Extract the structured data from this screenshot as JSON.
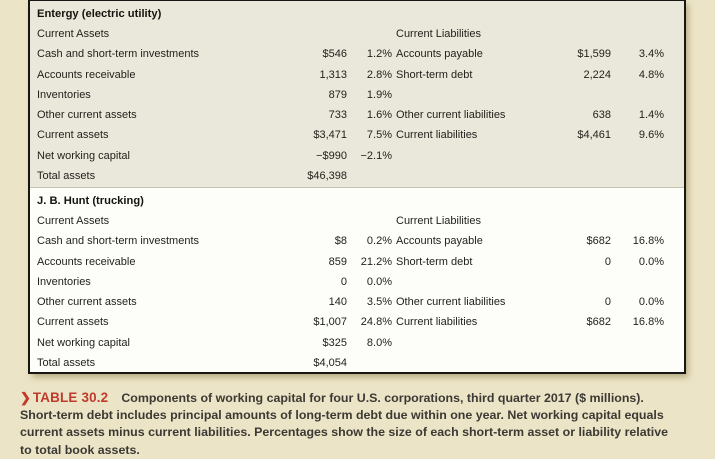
{
  "colors": {
    "page_bg": "#ece4c6",
    "entergy_bg": "#eae8da",
    "jbhunt_bg": "#fdfdfa",
    "border": "#161613",
    "accent_red": "#bf3a2b",
    "caption_text": "#3b3933"
  },
  "table": {
    "sections": [
      {
        "company": "Entergy (electric utility)",
        "assets_header": "Current Assets",
        "liabilities_header": "Current Liabilities",
        "rows": [
          {
            "asset_label": "Cash and short-term investments",
            "asset_value": "$546",
            "asset_pct": "1.2%",
            "liab_label": "Accounts payable",
            "liab_value": "$1,599",
            "liab_pct": "3.4%"
          },
          {
            "asset_label": "Accounts receivable",
            "asset_value": "1,313",
            "asset_pct": "2.8%",
            "liab_label": "Short-term debt",
            "liab_value": "2,224",
            "liab_pct": "4.8%"
          },
          {
            "asset_label": "Inventories",
            "asset_value": "879",
            "asset_pct": "1.9%",
            "liab_label": "",
            "liab_value": "",
            "liab_pct": ""
          },
          {
            "asset_label": "Other current assets",
            "asset_value": "733",
            "asset_pct": "1.6%",
            "liab_label": "Other current liabilities",
            "liab_value": "638",
            "liab_pct": "1.4%"
          },
          {
            "asset_label": "Current assets",
            "asset_value": "$3,471",
            "asset_pct": "7.5%",
            "liab_label": "Current liabilities",
            "liab_value": "$4,461",
            "liab_pct": "9.6%"
          },
          {
            "asset_label": "Net working capital",
            "asset_value": "−$990",
            "asset_pct": "−2.1%",
            "liab_label": "",
            "liab_value": "",
            "liab_pct": ""
          },
          {
            "asset_label": "Total assets",
            "asset_value": "$46,398",
            "asset_pct": "",
            "liab_label": "",
            "liab_value": "",
            "liab_pct": ""
          }
        ]
      },
      {
        "company": "J. B. Hunt (trucking)",
        "assets_header": "Current Assets",
        "liabilities_header": "Current Liabilities",
        "rows": [
          {
            "asset_label": "Cash and short-term investments",
            "asset_value": "$8",
            "asset_pct": "0.2%",
            "liab_label": "Accounts payable",
            "liab_value": "$682",
            "liab_pct": "16.8%"
          },
          {
            "asset_label": "Accounts receivable",
            "asset_value": "859",
            "asset_pct": "21.2%",
            "liab_label": "Short-term debt",
            "liab_value": "0",
            "liab_pct": "0.0%"
          },
          {
            "asset_label": "Inventories",
            "asset_value": "0",
            "asset_pct": "0.0%",
            "liab_label": "",
            "liab_value": "",
            "liab_pct": ""
          },
          {
            "asset_label": "Other current assets",
            "asset_value": "140",
            "asset_pct": "3.5%",
            "liab_label": "Other current liabilities",
            "liab_value": "0",
            "liab_pct": "0.0%"
          },
          {
            "asset_label": "Current assets",
            "asset_value": "$1,007",
            "asset_pct": "24.8%",
            "liab_label": "Current liabilities",
            "liab_value": "$682",
            "liab_pct": "16.8%"
          },
          {
            "asset_label": "Net working capital",
            "asset_value": "$325",
            "asset_pct": "8.0%",
            "liab_label": "",
            "liab_value": "",
            "liab_pct": ""
          },
          {
            "asset_label": "Total assets",
            "asset_value": "$4,054",
            "asset_pct": "",
            "liab_label": "",
            "liab_value": "",
            "liab_pct": ""
          }
        ]
      }
    ]
  },
  "caption": {
    "marker": "❯",
    "label": "TABLE 30.2",
    "line1": "Components of working capital for four U.S. corporations, third quarter 2017 ($ millions).",
    "line2": "Short-term debt includes principal amounts of long-term debt due within one year. Net working capital equals",
    "line3": "current assets minus current liabilities. Percentages show the size of each short-term asset or liability relative",
    "line4": "to total book assets."
  }
}
